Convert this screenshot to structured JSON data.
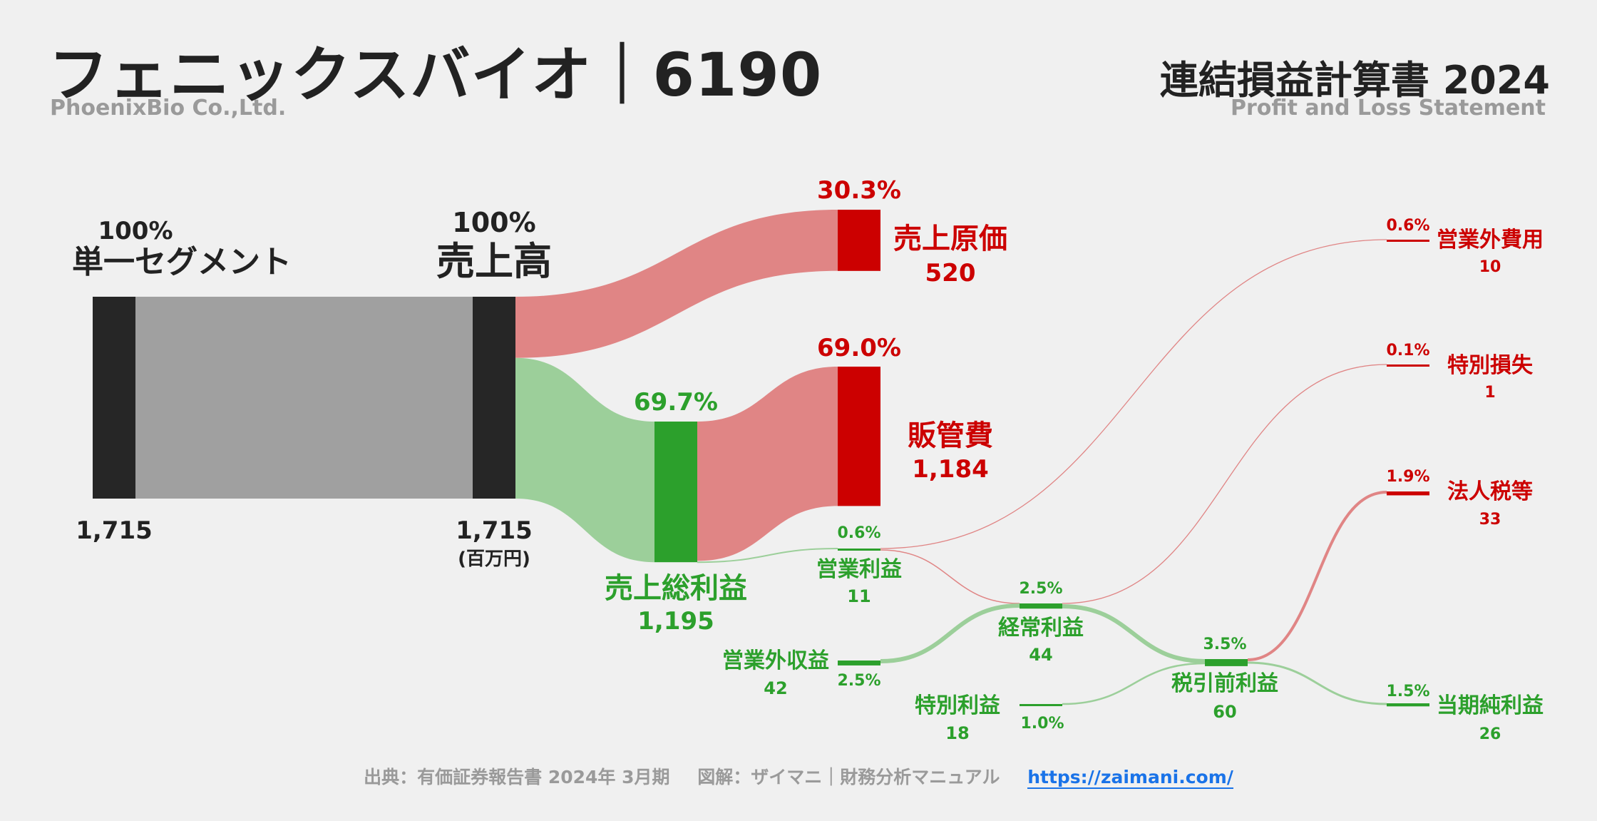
{
  "header": {
    "title_jp": "フェニックスバイオ｜6190",
    "company_en": "PhoenixBio Co.,Ltd.",
    "statement_jp": "連結損益計算書 2024",
    "statement_en": "Profit and Loss Statement"
  },
  "footer": {
    "source": "出典：有価証券報告書 2024年 3月期",
    "credit": "図解：ザイマニ｜財務分析マニュアル",
    "link": "https://zaimani.com/"
  },
  "colors": {
    "background": "#f0f0f0",
    "node_dark": "#262626",
    "revenue_flow": "#a0a0a0",
    "cost_node": "#cc0000",
    "cost_flow": "#e08585",
    "profit_node": "#2ca02c",
    "profit_flow": "#9ccf9a",
    "text_dark": "#222222",
    "text_cost": "#cc0000",
    "text_profit": "#2ca02c"
  },
  "chart_data": {
    "type": "sankey",
    "unit_label": "(百万円)",
    "nodes": [
      {
        "id": "segment",
        "label": "単一セグメント",
        "value": 1715,
        "value_label": "1,715",
        "pct_label": "100%",
        "kind": "revenue"
      },
      {
        "id": "revenue",
        "label": "売上高",
        "value": 1715,
        "value_label": "1,715",
        "pct_label": "100%",
        "kind": "revenue"
      },
      {
        "id": "cogs",
        "label": "売上原価",
        "value": 520,
        "value_label": "520",
        "pct_label": "30.3%",
        "kind": "cost"
      },
      {
        "id": "gross_profit",
        "label": "売上総利益",
        "value": 1195,
        "value_label": "1,195",
        "pct_label": "69.7%",
        "kind": "profit"
      },
      {
        "id": "sga",
        "label": "販管費",
        "value": 1184,
        "value_label": "1,184",
        "pct_label": "69.0%",
        "kind": "cost"
      },
      {
        "id": "operating_profit",
        "label": "営業利益",
        "value": 11,
        "value_label": "11",
        "pct_label": "0.6%",
        "kind": "profit"
      },
      {
        "id": "non_op_income",
        "label": "営業外収益",
        "value": 42,
        "value_label": "42",
        "pct_label": "2.5%",
        "kind": "profit"
      },
      {
        "id": "non_op_expense",
        "label": "営業外費用",
        "value": 10,
        "value_label": "10",
        "pct_label": "0.6%",
        "kind": "cost"
      },
      {
        "id": "ordinary_profit",
        "label": "経常利益",
        "value": 44,
        "value_label": "44",
        "pct_label": "2.5%",
        "kind": "profit"
      },
      {
        "id": "extra_gain",
        "label": "特別利益",
        "value": 18,
        "value_label": "18",
        "pct_label": "1.0%",
        "kind": "profit"
      },
      {
        "id": "extra_loss",
        "label": "特別損失",
        "value": 1,
        "value_label": "1",
        "pct_label": "0.1%",
        "kind": "cost"
      },
      {
        "id": "pretax_profit",
        "label": "税引前利益",
        "value": 60,
        "value_label": "60",
        "pct_label": "3.5%",
        "kind": "profit"
      },
      {
        "id": "tax",
        "label": "法人税等",
        "value": 33,
        "value_label": "33",
        "pct_label": "1.9%",
        "kind": "cost"
      },
      {
        "id": "net_income",
        "label": "当期純利益",
        "value": 26,
        "value_label": "26",
        "pct_label": "1.5%",
        "kind": "profit"
      }
    ],
    "links": [
      {
        "source": "segment",
        "target": "revenue",
        "value": 1715
      },
      {
        "source": "revenue",
        "target": "cogs",
        "value": 520
      },
      {
        "source": "revenue",
        "target": "gross_profit",
        "value": 1195
      },
      {
        "source": "gross_profit",
        "target": "sga",
        "value": 1184
      },
      {
        "source": "gross_profit",
        "target": "operating_profit",
        "value": 11
      },
      {
        "source": "operating_profit",
        "target": "non_op_expense",
        "value": 10
      },
      {
        "source": "operating_profit",
        "target": "ordinary_profit",
        "value": 1
      },
      {
        "source": "non_op_income",
        "target": "ordinary_profit",
        "value": 42
      },
      {
        "source": "ordinary_profit",
        "target": "extra_loss",
        "value": 1
      },
      {
        "source": "ordinary_profit",
        "target": "pretax_profit",
        "value": 43
      },
      {
        "source": "extra_gain",
        "target": "pretax_profit",
        "value": 18
      },
      {
        "source": "pretax_profit",
        "target": "tax",
        "value": 33
      },
      {
        "source": "pretax_profit",
        "target": "net_income",
        "value": 26
      }
    ]
  }
}
